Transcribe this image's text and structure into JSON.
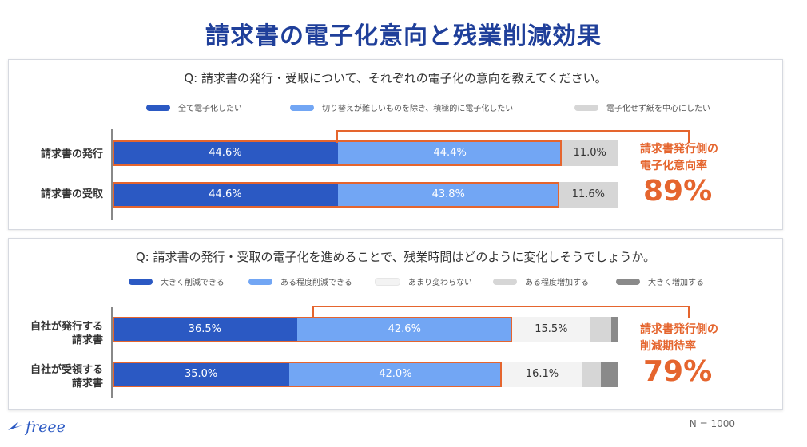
{
  "title": "請求書の電子化意向と残業削減効果",
  "sample_size": "N = 1000",
  "logo_text": "freee",
  "colors": {
    "dark_blue": "#2b59c3",
    "light_blue": "#72a6f4",
    "very_light_gray": "#f3f3f3",
    "light_gray": "#d6d6d6",
    "dark_gray": "#8a8a8a",
    "accent": "#e5652e",
    "title": "#1f3f9a"
  },
  "chart_data": [
    {
      "type": "bar",
      "orientation": "horizontal",
      "stacked": true,
      "title": "Q: 請求書の発行・受取について、それぞれの電子化の意向を教えてください。",
      "categories": [
        "請求書の発行",
        "請求書の受取"
      ],
      "series": [
        {
          "name": "全て電子化したい",
          "values": [
            44.6,
            44.6
          ],
          "color": "#2b59c3"
        },
        {
          "name": "切り替えが難しいものを除き、積極的に電子化したい",
          "values": [
            44.4,
            43.8
          ],
          "color": "#72a6f4"
        },
        {
          "name": "電子化せず紙を中心にしたい",
          "values": [
            11.0,
            11.6
          ],
          "color": "#d6d6d6"
        }
      ],
      "data_labels": [
        [
          "44.6%",
          "44.4%",
          "11.0%"
        ],
        [
          "44.6%",
          "43.8%",
          "11.6%"
        ]
      ],
      "xlim": [
        0,
        100
      ],
      "legend_position": "top",
      "annotation": {
        "label_lines": [
          "請求書発行側の",
          "電子化意向率"
        ],
        "value": "89%"
      }
    },
    {
      "type": "bar",
      "orientation": "horizontal",
      "stacked": true,
      "title": "Q: 請求書の発行・受取の電子化を進めることで、残業時間はどのように変化しそうでしょうか。",
      "categories": [
        "自社が発行する\n請求書",
        "自社が受領する\n請求書"
      ],
      "series": [
        {
          "name": "大きく削減できる",
          "values": [
            36.5,
            35.0
          ],
          "color": "#2b59c3"
        },
        {
          "name": "ある程度削減できる",
          "values": [
            42.6,
            42.0
          ],
          "color": "#72a6f4"
        },
        {
          "name": "あまり変わらない",
          "values": [
            15.5,
            16.1
          ],
          "color": "#f3f3f3"
        },
        {
          "name": "ある程度増加する",
          "values": [
            4.2,
            3.6
          ],
          "color": "#d6d6d6"
        },
        {
          "name": "大きく増加する",
          "values": [
            1.2,
            3.3
          ],
          "color": "#8a8a8a"
        }
      ],
      "data_labels": [
        [
          "36.5%",
          "42.6%",
          "15.5%",
          "",
          ""
        ],
        [
          "35.0%",
          "42.0%",
          "16.1%",
          "",
          ""
        ]
      ],
      "xlim": [
        0,
        100
      ],
      "legend_position": "top",
      "annotation": {
        "label_lines": [
          "請求書発行側の",
          "削減期待率"
        ],
        "value": "79%"
      }
    }
  ]
}
